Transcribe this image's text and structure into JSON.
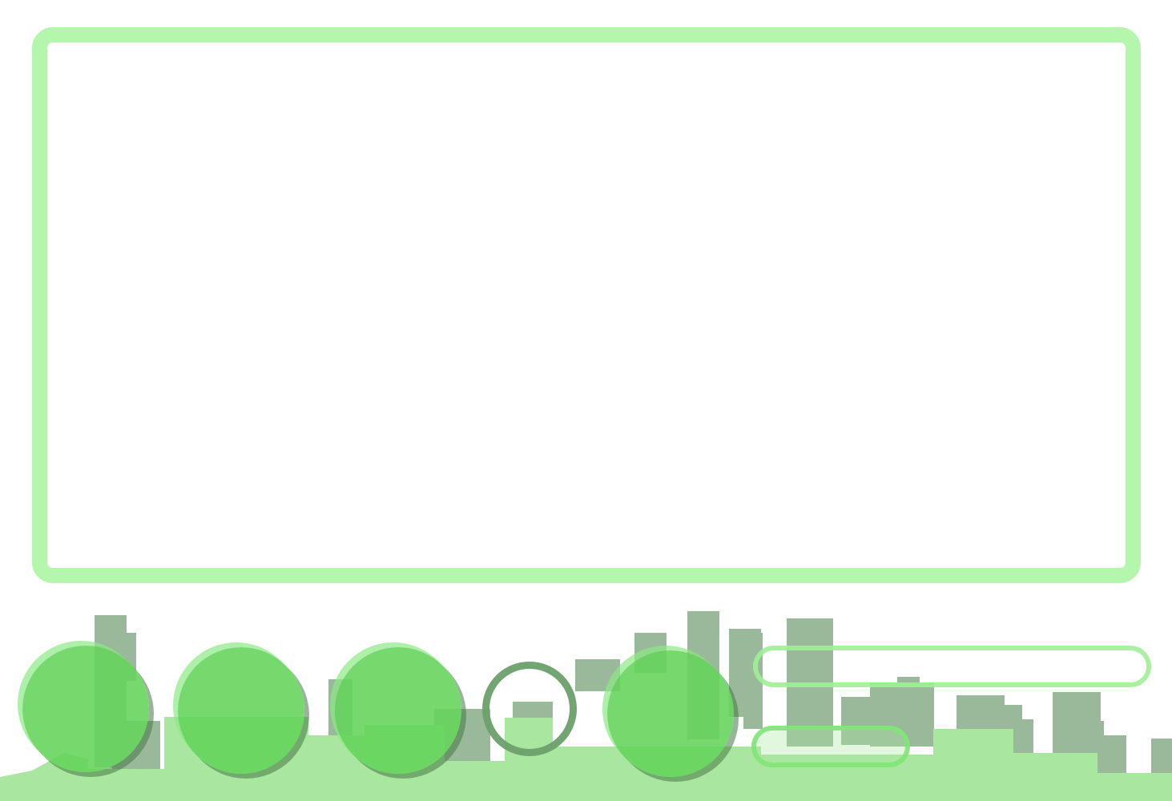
{
  "scene": {
    "colors": {
      "panel_border": "#b4f6ab",
      "ground": "#a9e6a0",
      "building_dark": "#9ab99a",
      "button_fill": "#63d45a",
      "button_outline": "#6ca06c"
    }
  },
  "controls": {
    "buttons": [
      {
        "id": "button-1",
        "style": "filled",
        "label": ""
      },
      {
        "id": "button-2",
        "style": "filled",
        "label": ""
      },
      {
        "id": "button-3",
        "style": "filled",
        "label": ""
      },
      {
        "id": "button-4",
        "style": "outline",
        "label": ""
      },
      {
        "id": "button-5",
        "style": "filled",
        "label": ""
      }
    ],
    "pills": [
      {
        "id": "pill-top",
        "label": ""
      },
      {
        "id": "pill-bottom",
        "label": ""
      }
    ]
  }
}
